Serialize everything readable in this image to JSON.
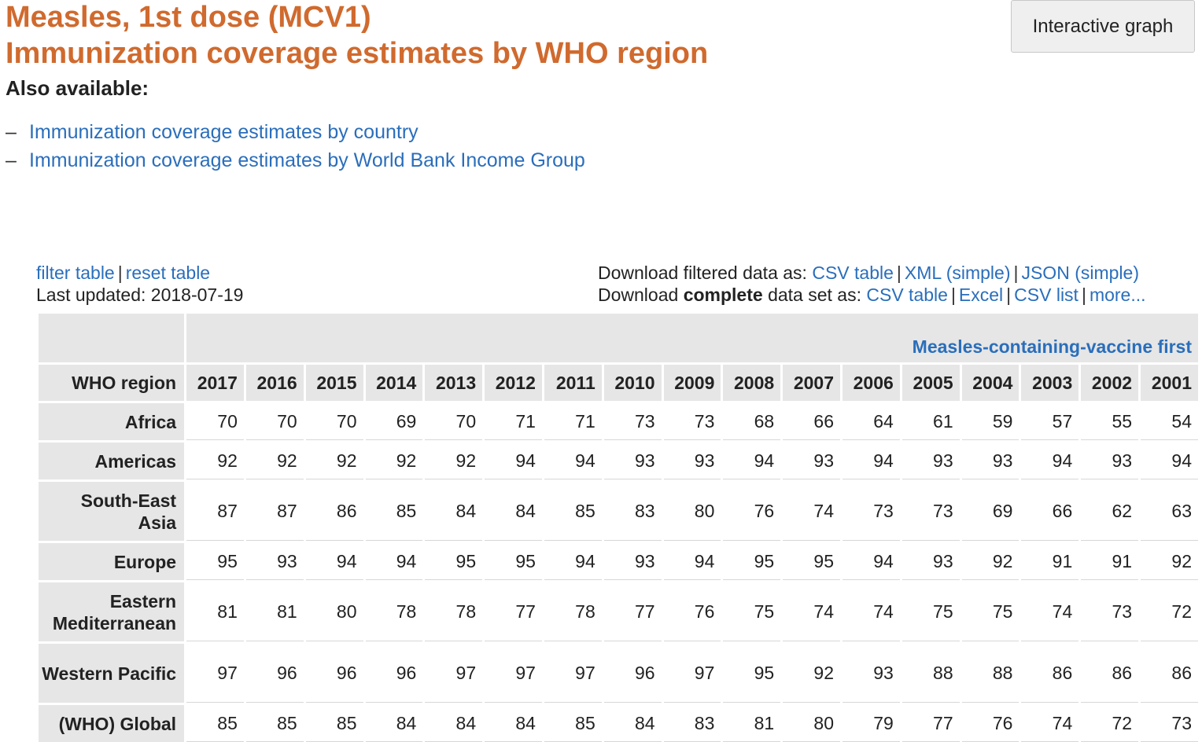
{
  "title_line1": "Measles, 1st dose (MCV1)",
  "title_line2": "Immunization coverage estimates by WHO region",
  "also_available": "Also available:",
  "alt_links": [
    "Immunization coverage estimates by country",
    "Immunization coverage estimates by World Bank Income Group"
  ],
  "interactive_graph": "Interactive graph",
  "controls": {
    "filter_table": "filter table",
    "reset_table": "reset table",
    "last_updated": "Last updated: 2018-07-19",
    "download_filtered_prefix": "Download filtered data as:",
    "download_filtered_links": [
      "CSV table",
      "XML (simple)",
      "JSON (simple)"
    ],
    "download_complete_prefix": "Download",
    "download_complete_bold": "complete",
    "download_complete_suffix": "data set as:",
    "download_complete_links": [
      "CSV table",
      "Excel",
      "CSV list",
      "more..."
    ]
  },
  "table": {
    "indicator": "Measles-containing-vaccine first",
    "region_header": "WHO region",
    "years": [
      "2017",
      "2016",
      "2015",
      "2014",
      "2013",
      "2012",
      "2011",
      "2010",
      "2009",
      "2008",
      "2007",
      "2006",
      "2005",
      "2004",
      "2003",
      "2002",
      "2001"
    ],
    "rows": [
      {
        "region": "Africa",
        "tall": false,
        "values": [
          70,
          70,
          70,
          69,
          70,
          71,
          71,
          73,
          73,
          68,
          66,
          64,
          61,
          59,
          57,
          55,
          54
        ]
      },
      {
        "region": "Americas",
        "tall": false,
        "values": [
          92,
          92,
          92,
          92,
          92,
          94,
          94,
          93,
          93,
          94,
          93,
          94,
          93,
          93,
          94,
          93,
          94
        ]
      },
      {
        "region": "South-East Asia",
        "tall": true,
        "values": [
          87,
          87,
          86,
          85,
          84,
          84,
          85,
          83,
          80,
          76,
          74,
          73,
          73,
          69,
          66,
          62,
          63
        ]
      },
      {
        "region": "Europe",
        "tall": false,
        "values": [
          95,
          93,
          94,
          94,
          95,
          95,
          94,
          93,
          94,
          95,
          95,
          94,
          93,
          92,
          91,
          91,
          92
        ]
      },
      {
        "region": "Eastern Mediterranean",
        "tall": true,
        "values": [
          81,
          81,
          80,
          78,
          78,
          77,
          78,
          77,
          76,
          75,
          74,
          74,
          75,
          75,
          74,
          73,
          72
        ]
      },
      {
        "region": "Western Pacific",
        "tall": true,
        "values": [
          97,
          96,
          96,
          96,
          97,
          97,
          97,
          96,
          97,
          95,
          92,
          93,
          88,
          88,
          86,
          86,
          86
        ]
      },
      {
        "region": "(WHO) Global",
        "tall": false,
        "values": [
          85,
          85,
          85,
          84,
          84,
          84,
          85,
          84,
          83,
          81,
          80,
          79,
          77,
          76,
          74,
          72,
          73
        ]
      }
    ]
  }
}
